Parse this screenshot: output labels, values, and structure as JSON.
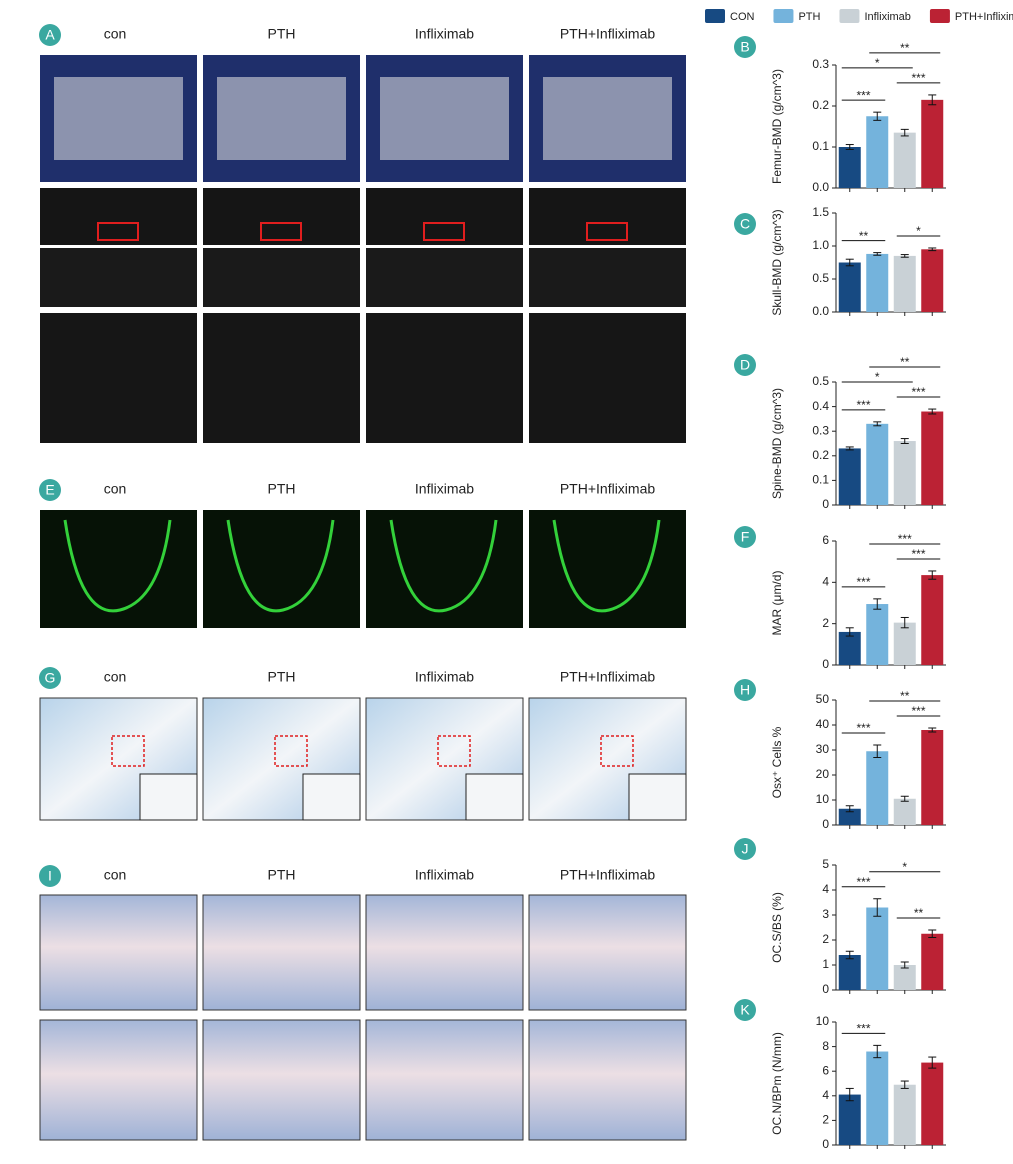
{
  "legend": [
    {
      "name": "CON",
      "color": "#174a82"
    },
    {
      "name": "PTH",
      "color": "#74b3dc"
    },
    {
      "name": "Infliximab",
      "color": "#c9d1d6"
    },
    {
      "name": "PTH+Infliximab",
      "color": "#bb2234"
    }
  ],
  "image_panels": [
    {
      "label": "A",
      "groups": [
        "con",
        "PTH",
        "Infliximab",
        "PTH+Infliximab"
      ]
    },
    {
      "label": "E",
      "groups": [
        "con",
        "PTH",
        "Infliximab",
        "PTH+Infliximab"
      ]
    },
    {
      "label": "G",
      "groups": [
        "con",
        "PTH",
        "Infliximab",
        "PTH+Infliximab"
      ]
    },
    {
      "label": "I",
      "groups": [
        "con",
        "PTH",
        "Infliximab",
        "PTH+Infliximab"
      ]
    }
  ],
  "chart_data": [
    {
      "type": "bar",
      "panel": "B",
      "ylabel": "Femur-BMD (g/cm^3)",
      "values": [
        0.1,
        0.175,
        0.135,
        0.215
      ],
      "errors": [
        0.006,
        0.01,
        0.008,
        0.012
      ],
      "ylim": [
        0,
        0.3
      ],
      "yticks": [
        {
          "value": 0,
          "label": "0.0"
        },
        0.1,
        0.2,
        0.3
      ],
      "annotations": [
        {
          "label": "***",
          "pair": [
            0,
            1
          ]
        },
        {
          "label": "***",
          "pair": [
            2,
            3
          ]
        },
        {
          "label": "*",
          "pair": [
            0,
            2
          ]
        },
        {
          "label": "**",
          "pair": [
            1,
            3
          ]
        }
      ]
    },
    {
      "type": "bar",
      "panel": "C",
      "ylabel": "Skull-BMD (g/cm^3)",
      "values": [
        0.75,
        0.88,
        0.85,
        0.95
      ],
      "errors": [
        0.05,
        0.02,
        0.02,
        0.02
      ],
      "ylim": [
        0,
        1.5
      ],
      "yticks": [
        {
          "value": 0,
          "label": "0.0"
        },
        0.5,
        {
          "value": 1,
          "label": "1.0"
        },
        1.5
      ],
      "annotations": [
        {
          "label": "**",
          "pair": [
            0,
            1
          ]
        },
        {
          "label": "*",
          "pair": [
            2,
            3
          ]
        }
      ]
    },
    {
      "type": "bar",
      "panel": "D",
      "ylabel": "Spine-BMD (g/cm^3)",
      "values": [
        0.23,
        0.33,
        0.26,
        0.38
      ],
      "errors": [
        0.006,
        0.008,
        0.01,
        0.01
      ],
      "ylim": [
        0,
        0.5
      ],
      "yticks": [
        0,
        0.1,
        0.2,
        0.3,
        0.4,
        0.5
      ],
      "annotations": [
        {
          "label": "***",
          "pair": [
            0,
            1
          ]
        },
        {
          "label": "***",
          "pair": [
            2,
            3
          ]
        },
        {
          "label": "*",
          "pair": [
            0,
            2
          ]
        },
        {
          "label": "**",
          "pair": [
            1,
            3
          ]
        }
      ]
    },
    {
      "type": "bar",
      "panel": "F",
      "ylabel": "MAR (μm/d)",
      "values": [
        1.6,
        2.95,
        2.05,
        4.35
      ],
      "errors": [
        0.2,
        0.25,
        0.25,
        0.2
      ],
      "ylim": [
        0,
        6
      ],
      "yticks": [
        0,
        2,
        4,
        6
      ],
      "annotations": [
        {
          "label": "***",
          "pair": [
            0,
            1
          ]
        },
        {
          "label": "***",
          "pair": [
            2,
            3
          ]
        },
        {
          "label": "***",
          "pair": [
            1,
            3
          ]
        }
      ]
    },
    {
      "type": "bar",
      "panel": "H",
      "ylabel": "Osx⁺ Cells %",
      "values": [
        6.5,
        29.5,
        10.5,
        38
      ],
      "errors": [
        1.2,
        2.5,
        1.0,
        0.8
      ],
      "ylim": [
        0,
        50
      ],
      "yticks": [
        0,
        10,
        20,
        30,
        40,
        50
      ],
      "annotations": [
        {
          "label": "***",
          "pair": [
            0,
            1
          ]
        },
        {
          "label": "***",
          "pair": [
            2,
            3
          ]
        },
        {
          "label": "**",
          "pair": [
            1,
            3
          ]
        }
      ]
    },
    {
      "type": "bar",
      "panel": "J",
      "ylabel": "OC.S/BS (%)",
      "values": [
        1.4,
        3.3,
        1.0,
        2.25
      ],
      "errors": [
        0.15,
        0.35,
        0.12,
        0.15
      ],
      "ylim": [
        0,
        5
      ],
      "yticks": [
        0,
        1,
        2,
        3,
        4,
        5
      ],
      "annotations": [
        {
          "label": "***",
          "pair": [
            0,
            1
          ]
        },
        {
          "label": "**",
          "pair": [
            2,
            3
          ]
        },
        {
          "label": "*",
          "pair": [
            1,
            3
          ]
        }
      ]
    },
    {
      "type": "bar",
      "panel": "K",
      "ylabel": "OC.N/BPm (N/mm)",
      "values": [
        4.1,
        7.6,
        4.9,
        6.7
      ],
      "errors": [
        0.5,
        0.5,
        0.3,
        0.45
      ],
      "ylim": [
        0,
        10
      ],
      "yticks": [
        0,
        2,
        4,
        6,
        8,
        10
      ],
      "annotations": [
        {
          "label": "***",
          "pair": [
            0,
            1
          ]
        }
      ]
    }
  ]
}
